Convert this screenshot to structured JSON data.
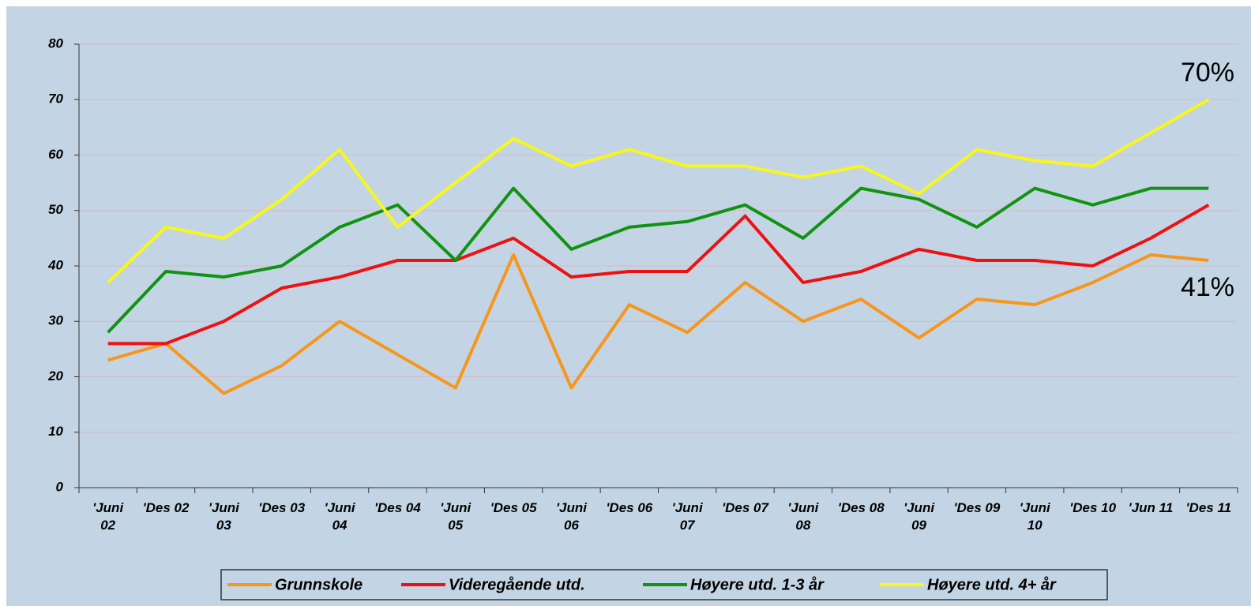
{
  "chart_data": {
    "type": "line",
    "categories": [
      "'Juni 02",
      "'Des 02",
      "'Juni 03",
      "'Des 03",
      "'Juni 04",
      "'Des 04",
      "'Juni 05",
      "'Des 05",
      "'Juni 06",
      "'Des 06",
      "'Juni 07",
      "'Des 07",
      "'Juni 08",
      "'Des 08",
      "'Juni 09",
      "'Des 09",
      "'Juni 10",
      "'Des 10",
      "'Jun 11",
      "'Des 11"
    ],
    "series": [
      {
        "name": "Grunnskole",
        "color": "#f7961d",
        "values": [
          23,
          26,
          17,
          22,
          30,
          24,
          18,
          42,
          18,
          33,
          28,
          37,
          30,
          34,
          27,
          34,
          33,
          37,
          42,
          41
        ]
      },
      {
        "name": "Videregående utd.",
        "color": "#ee1111",
        "values": [
          26,
          26,
          30,
          36,
          38,
          41,
          41,
          45,
          38,
          39,
          39,
          49,
          37,
          39,
          43,
          41,
          41,
          40,
          45,
          51
        ]
      },
      {
        "name": "Høyere utd. 1-3 år",
        "color": "#119311",
        "values": [
          28,
          39,
          38,
          40,
          47,
          51,
          41,
          54,
          43,
          47,
          48,
          51,
          45,
          54,
          52,
          47,
          54,
          51,
          54,
          54
        ]
      },
      {
        "name": "Høyere utd. 4+ år",
        "color": "#f7f71a",
        "values": [
          37,
          47,
          45,
          52,
          61,
          47,
          55,
          63,
          58,
          61,
          58,
          58,
          56,
          58,
          53,
          61,
          59,
          58,
          64,
          70
        ]
      }
    ],
    "ylim": [
      0,
      80
    ],
    "yticks": [
      0,
      10,
      20,
      30,
      40,
      50,
      60,
      70,
      80
    ],
    "grid": true,
    "annotations": [
      "70%",
      "41%"
    ],
    "legend": "bottom"
  }
}
